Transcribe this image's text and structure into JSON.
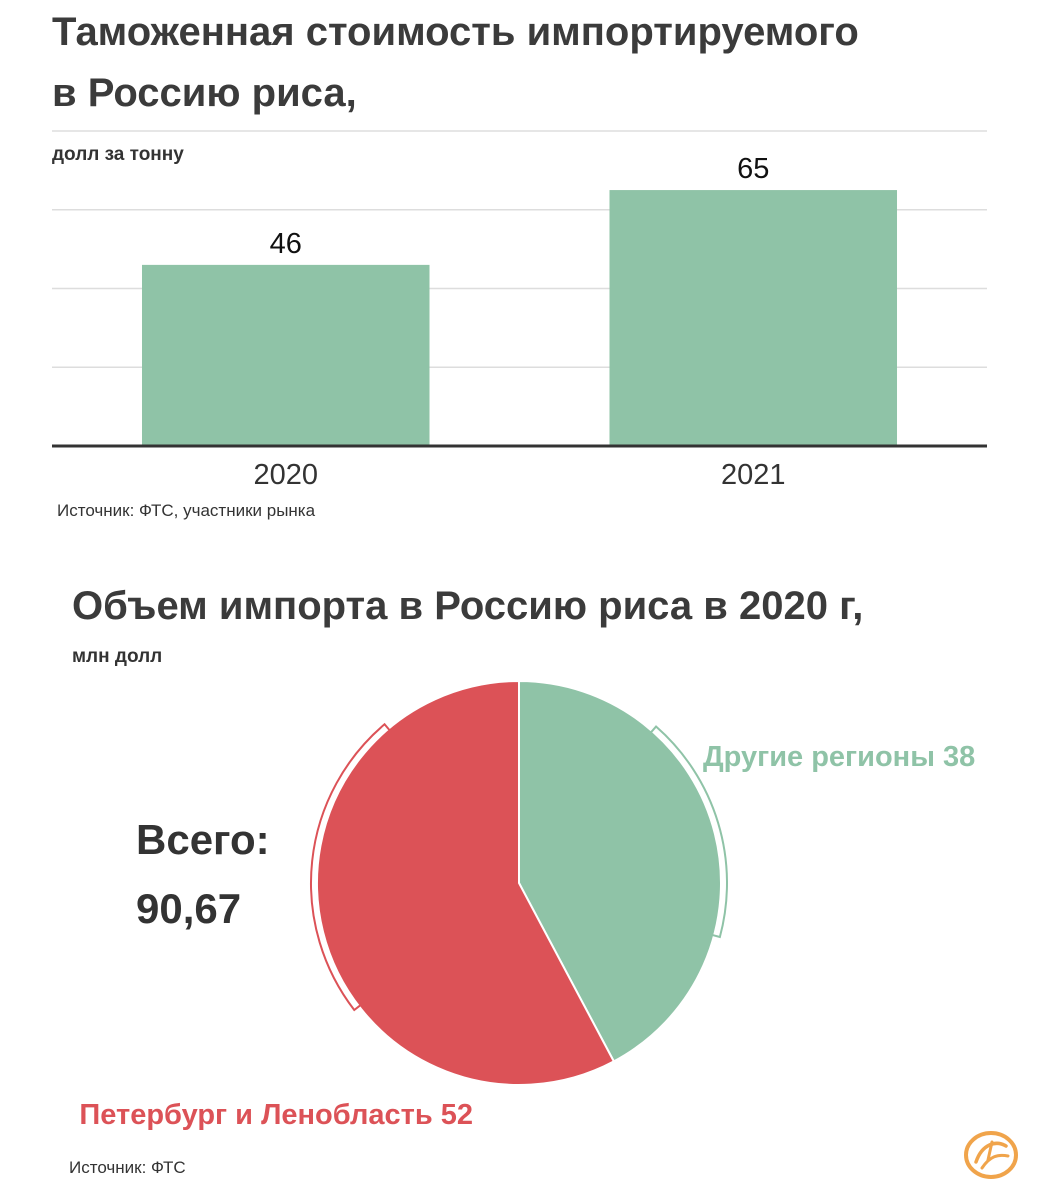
{
  "bar_chart": {
    "title_line1": "Таможенная стоимость импортируемого",
    "title_line2": "в Россию риса,",
    "subtitle": "долл за тонну",
    "source": "Источник: ФТС, участники рынка"
  },
  "pie_chart": {
    "title": "Объем импорта в Россию риса в 2020 г,",
    "subtitle": "млн долл",
    "total_label": "Всего:",
    "total_value": "90,67",
    "source": "Источник: ФТС"
  },
  "colors": {
    "green": "#8fc3a7",
    "red": "#dc5257",
    "axis": "#333333",
    "grid": "#dddddd",
    "logo": "#f0a44b"
  },
  "logo_icon": "logo-icon",
  "chart_data": [
    {
      "type": "bar",
      "categories": [
        "2020",
        "2021"
      ],
      "values": [
        46,
        65
      ],
      "ylim": [
        0,
        80
      ],
      "grid": true
    },
    {
      "type": "pie",
      "slices": [
        {
          "label": "Другие регионы 38",
          "value": 38,
          "color": "#8fc3a7"
        },
        {
          "label": "Петербург и Ленобласть 52",
          "value": 52,
          "color": "#dc5257"
        }
      ]
    }
  ]
}
